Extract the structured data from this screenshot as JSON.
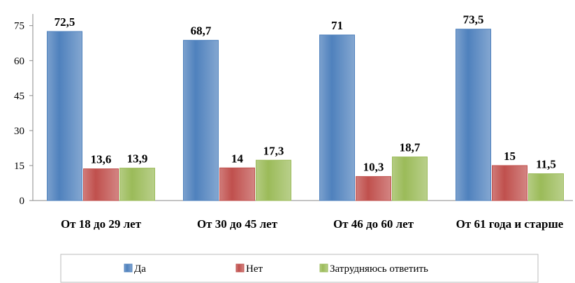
{
  "chart_data": {
    "type": "bar",
    "categories": [
      "От 18 до 29 лет",
      "От 30 до 45 лет",
      "От 46 до 60 лет",
      "От 61 года и старше"
    ],
    "series": [
      {
        "name": "Да",
        "color": "#4f81bd",
        "values": [
          72.5,
          68.7,
          71,
          73.5
        ],
        "value_labels": [
          "72,5",
          "68,7",
          "71",
          "73,5"
        ]
      },
      {
        "name": "Нет",
        "color": "#c0504d",
        "values": [
          13.6,
          14,
          10.3,
          15
        ],
        "value_labels": [
          "13,6",
          "14",
          "10,3",
          "15"
        ]
      },
      {
        "name": "Затрудняюсь ответить",
        "color": "#9bbb59",
        "values": [
          13.9,
          17.3,
          18.7,
          11.5
        ],
        "value_labels": [
          "13,9",
          "17,3",
          "18,7",
          "11,5"
        ]
      }
    ],
    "ylim": [
      0,
      80
    ],
    "yticks": [
      0,
      15,
      30,
      45,
      60,
      75
    ],
    "legend": "bottom"
  }
}
